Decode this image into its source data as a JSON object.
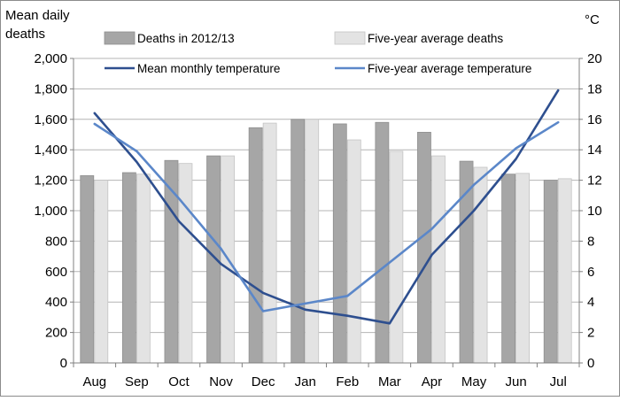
{
  "chart_data": {
    "type": "bar+line",
    "categories": [
      "Aug",
      "Sep",
      "Oct",
      "Nov",
      "Dec",
      "Jan",
      "Feb",
      "Mar",
      "Apr",
      "May",
      "Jun",
      "Jul"
    ],
    "series": [
      {
        "name": "Deaths in 2012/13",
        "kind": "bar",
        "axis": "left",
        "color": "#a6a6a6",
        "values": [
          1230,
          1250,
          1330,
          1360,
          1545,
          1600,
          1570,
          1580,
          1515,
          1325,
          1240,
          1200
        ]
      },
      {
        "name": "Five-year average deaths",
        "kind": "bar",
        "axis": "left",
        "color": "#e3e3e3",
        "values": [
          1200,
          1240,
          1310,
          1360,
          1575,
          1600,
          1465,
          1390,
          1360,
          1285,
          1245,
          1210
        ]
      },
      {
        "name": "Mean monthly temperature",
        "kind": "line",
        "axis": "right",
        "color": "#2e4f8f",
        "values": [
          16.4,
          13.2,
          9.3,
          6.5,
          4.6,
          3.5,
          3.1,
          2.6,
          7.1,
          10.0,
          13.4,
          17.9
        ]
      },
      {
        "name": "Five-year average temperature",
        "kind": "line",
        "axis": "right",
        "color": "#5b87c9",
        "values": [
          15.7,
          13.9,
          10.8,
          7.5,
          3.4,
          3.9,
          4.4,
          6.6,
          8.8,
          11.7,
          14.1,
          15.8
        ]
      }
    ],
    "ylabel_left": "Mean daily deaths",
    "ylabel_right": "°C",
    "ylim_left": [
      0,
      2000
    ],
    "yticks_left": [
      "0",
      "200",
      "400",
      "600",
      "800",
      "1,000",
      "1,200",
      "1,400",
      "1,600",
      "1,800",
      "2,000"
    ],
    "ylim_right": [
      0,
      20
    ],
    "yticks_right": [
      "0",
      "2",
      "4",
      "6",
      "8",
      "10",
      "12",
      "14",
      "16",
      "18",
      "20"
    ],
    "grid": true,
    "legend": "top, two columns"
  }
}
